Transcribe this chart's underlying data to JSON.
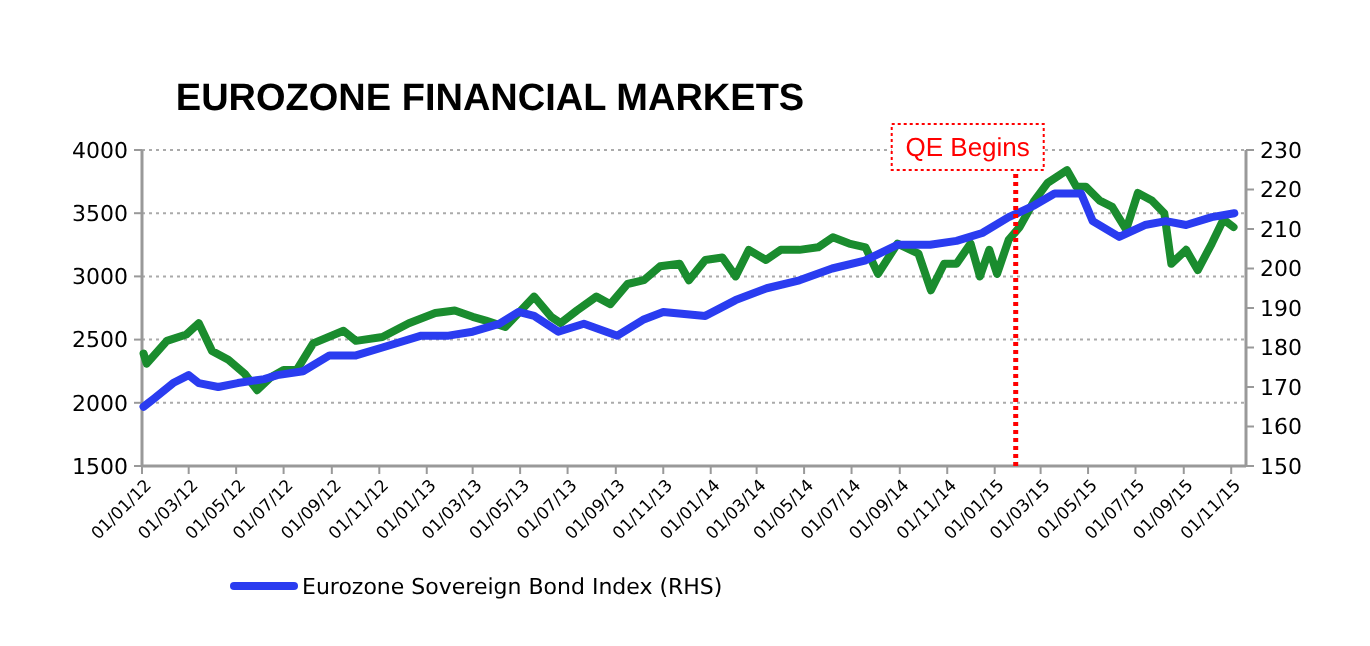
{
  "chart_data": {
    "type": "line",
    "title": "EUROZONE FINANCIAL MARKETS",
    "xlim": [
      "2012-01-01",
      "2015-11-20"
    ],
    "xticks": [
      {
        "value": "2012-01-01",
        "label": "01/01/12"
      },
      {
        "value": "2012-03-01",
        "label": "01/03/12"
      },
      {
        "value": "2012-05-01",
        "label": "01/05/12"
      },
      {
        "value": "2012-07-01",
        "label": "01/07/12"
      },
      {
        "value": "2012-09-01",
        "label": "01/09/12"
      },
      {
        "value": "2012-11-01",
        "label": "01/11/12"
      },
      {
        "value": "2013-01-01",
        "label": "01/01/13"
      },
      {
        "value": "2013-03-01",
        "label": "01/03/13"
      },
      {
        "value": "2013-05-01",
        "label": "01/05/13"
      },
      {
        "value": "2013-07-01",
        "label": "01/07/13"
      },
      {
        "value": "2013-09-01",
        "label": "01/09/13"
      },
      {
        "value": "2013-11-01",
        "label": "01/11/13"
      },
      {
        "value": "2014-01-01",
        "label": "01/01/14"
      },
      {
        "value": "2014-03-01",
        "label": "01/03/14"
      },
      {
        "value": "2014-05-01",
        "label": "01/05/14"
      },
      {
        "value": "2014-07-01",
        "label": "01/07/14"
      },
      {
        "value": "2014-09-01",
        "label": "01/09/14"
      },
      {
        "value": "2014-11-01",
        "label": "01/11/14"
      },
      {
        "value": "2015-01-01",
        "label": "01/01/15"
      },
      {
        "value": "2015-03-01",
        "label": "01/03/15"
      },
      {
        "value": "2015-05-01",
        "label": "01/05/15"
      },
      {
        "value": "2015-07-01",
        "label": "01/07/15"
      },
      {
        "value": "2015-09-01",
        "label": "01/09/15"
      },
      {
        "value": "2015-11-01",
        "label": "01/11/15"
      }
    ],
    "ylim": [
      1500,
      4000
    ],
    "yticks": [
      1500,
      2000,
      2500,
      3000,
      3500,
      4000
    ],
    "y2lim": [
      150,
      230
    ],
    "y2ticks": [
      150,
      160,
      170,
      180,
      190,
      200,
      210,
      220,
      230
    ],
    "grid": "y",
    "legend": "bottom",
    "line_style": "solid",
    "marker": "none",
    "ref_lines": [
      {
        "axis": "x",
        "value": "2015-01-28",
        "label": "QE Begins",
        "color": "#ff0000",
        "line_style": "dotted"
      }
    ],
    "series": [
      {
        "color": "#1a8c2e",
        "x": [
          "2012-01-03",
          "2012-01-07",
          "2012-02-02",
          "2012-02-27",
          "2012-03-14",
          "2012-03-31",
          "2012-04-21",
          "2012-05-12",
          "2012-05-28",
          "2012-06-14",
          "2012-07-01",
          "2012-07-18",
          "2012-08-08",
          "2012-09-16",
          "2012-10-02",
          "2012-11-05",
          "2012-12-09",
          "2013-01-12",
          "2013-02-06",
          "2013-03-01",
          "2013-03-18",
          "2013-04-12",
          "2013-04-29",
          "2013-05-19",
          "2013-06-10",
          "2013-06-22",
          "2013-07-13",
          "2013-08-07",
          "2013-08-25",
          "2013-09-16",
          "2013-10-07",
          "2013-10-28",
          "2013-11-22",
          "2013-12-04",
          "2013-12-25",
          "2014-01-16",
          "2014-02-02",
          "2014-02-19",
          "2014-03-13",
          "2014-04-01",
          "2014-04-25",
          "2014-05-19",
          "2014-06-07",
          "2014-06-28",
          "2014-07-19",
          "2014-08-04",
          "2014-08-29",
          "2014-09-25",
          "2014-10-11",
          "2014-10-28",
          "2014-11-13",
          "2014-12-01",
          "2014-12-13",
          "2014-12-25",
          "2015-01-04",
          "2015-01-19",
          "2015-02-02",
          "2015-02-21",
          "2015-03-10",
          "2015-04-04",
          "2015-04-16",
          "2015-04-28",
          "2015-05-16",
          "2015-06-01",
          "2015-06-19",
          "2015-07-04",
          "2015-07-22",
          "2015-08-07",
          "2015-08-16",
          "2015-09-04",
          "2015-09-19",
          "2015-10-07",
          "2015-10-22",
          "2015-11-04"
        ],
        "values": [
          2390,
          2310,
          2490,
          2540,
          2630,
          2410,
          2340,
          2230,
          2100,
          2200,
          2260,
          2260,
          2470,
          2570,
          2490,
          2520,
          2630,
          2710,
          2730,
          2680,
          2650,
          2600,
          2710,
          2840,
          2680,
          2630,
          2730,
          2840,
          2780,
          2940,
          2970,
          3080,
          3100,
          2970,
          3130,
          3150,
          3000,
          3210,
          3130,
          3210,
          3210,
          3230,
          3310,
          3260,
          3230,
          3020,
          3260,
          3180,
          2890,
          3100,
          3100,
          3260,
          3000,
          3210,
          3020,
          3290,
          3390,
          3600,
          3740,
          3840,
          3710,
          3710,
          3600,
          3550,
          3370,
          3660,
          3600,
          3500,
          3100,
          3210,
          3050,
          3260,
          3450,
          3390
        ]
      },
      {
        "name": "Eurozone Sovereign Bond Index (RHS)",
        "color": "#2a3cf0",
        "axis": "y2",
        "x": [
          "2012-01-03",
          "2012-01-16",
          "2012-02-10",
          "2012-03-01",
          "2012-03-14",
          "2012-04-08",
          "2012-05-03",
          "2012-06-06",
          "2012-06-23",
          "2012-07-26",
          "2012-08-29",
          "2012-10-02",
          "2012-11-05",
          "2012-12-25",
          "2013-01-29",
          "2013-03-01",
          "2013-04-04",
          "2013-04-29",
          "2013-05-19",
          "2013-06-19",
          "2013-07-22",
          "2013-09-03",
          "2013-10-06",
          "2013-11-01",
          "2013-12-25",
          "2014-02-02",
          "2014-03-14",
          "2014-04-25",
          "2014-06-06",
          "2014-07-18",
          "2014-08-29",
          "2014-10-02",
          "2014-10-10",
          "2014-11-13",
          "2014-12-16",
          "2015-01-19",
          "2015-02-21",
          "2015-03-19",
          "2015-04-22",
          "2015-05-07",
          "2015-06-10",
          "2015-07-13",
          "2015-08-09",
          "2015-09-04",
          "2015-10-07",
          "2015-11-05"
        ],
        "values": [
          165,
          167,
          171,
          173,
          171,
          170,
          171,
          172,
          173,
          174,
          178,
          178,
          180,
          183,
          183,
          184,
          186,
          189,
          188,
          184,
          186,
          183,
          187,
          189,
          188,
          192,
          195,
          197,
          200,
          202,
          206,
          206,
          206,
          207,
          209,
          213,
          216,
          219,
          219,
          212,
          208,
          211,
          212,
          211,
          213,
          214
        ]
      }
    ]
  }
}
